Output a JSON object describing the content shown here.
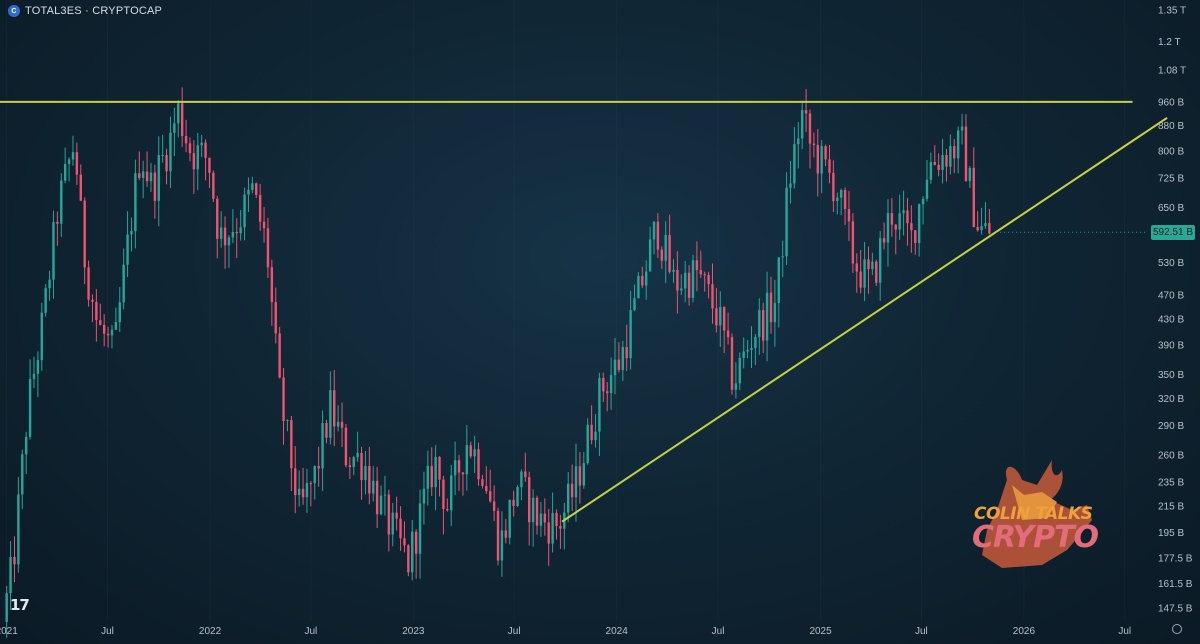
{
  "header": {
    "icon": "cryptocap-icon",
    "icon_glyph": "C",
    "title": "TOTAL3ES · CRYPTOCAP"
  },
  "price": {
    "current_label": "592.51 B",
    "color": "#28a896"
  },
  "branding": {
    "tv_logo": "tradingview-logo",
    "tv_glyph": "17"
  },
  "watermark": {
    "line1": "COLIN TALKS",
    "line2": "CRYPTO"
  },
  "colors": {
    "up": "#26a69a",
    "down": "#ef5370",
    "trendline": "#c9d13f",
    "axis_text": "#b7c0c8"
  },
  "chart_data": {
    "type": "candlestick",
    "scale": "log",
    "title": "TOTAL3ES · CRYPTOCAP",
    "ylim": [
      140,
      1400
    ],
    "xlim": [
      "2020-12-20",
      "2026-08-01"
    ],
    "y_ticks": [
      147.5,
      161.5,
      177.5,
      195,
      215,
      235,
      260,
      290,
      320,
      350,
      390,
      430,
      470,
      530,
      590,
      650,
      725,
      800,
      880,
      960,
      1080,
      1200,
      1350
    ],
    "y_tick_labels": [
      "147.5 B",
      "161.5 B",
      "177.5 B",
      "195 B",
      "215 B",
      "235 B",
      "260 B",
      "290 B",
      "320 B",
      "350 B",
      "390 B",
      "430 B",
      "470 B",
      "530 B",
      "590 B",
      "650 B",
      "725 B",
      "800 B",
      "880 B",
      "960 B",
      "1.08 T",
      "1.2 T",
      "1.35 T"
    ],
    "x_ticks": [
      "2021-01-01",
      "2021-07-01",
      "2022-01-01",
      "2022-07-01",
      "2023-01-01",
      "2023-07-01",
      "2024-01-01",
      "2024-07-01",
      "2025-01-01",
      "2025-07-01",
      "2026-01-01",
      "2026-07-01"
    ],
    "x_tick_labels": [
      "2021",
      "Jul",
      "2022",
      "Jul",
      "2023",
      "Jul",
      "2024",
      "Jul",
      "2025",
      "Jul",
      "2026",
      "Jul"
    ],
    "anchors": [
      [
        "2021-01-01",
        140
      ],
      [
        "2021-01-20",
        175
      ],
      [
        "2021-02-15",
        310
      ],
      [
        "2021-03-15",
        430
      ],
      [
        "2021-04-10",
        650
      ],
      [
        "2021-05-10",
        830
      ],
      [
        "2021-05-25",
        560
      ],
      [
        "2021-06-20",
        420
      ],
      [
        "2021-07-20",
        380
      ],
      [
        "2021-08-15",
        580
      ],
      [
        "2021-09-05",
        800
      ],
      [
        "2021-09-25",
        700
      ],
      [
        "2021-11-01",
        850
      ],
      [
        "2021-11-10",
        940
      ],
      [
        "2021-12-05",
        800
      ],
      [
        "2022-01-05",
        780
      ],
      [
        "2022-01-25",
        580
      ],
      [
        "2022-03-01",
        620
      ],
      [
        "2022-03-25",
        690
      ],
      [
        "2022-04-20",
        560
      ],
      [
        "2022-05-12",
        330
      ],
      [
        "2022-06-18",
        210
      ],
      [
        "2022-07-15",
        240
      ],
      [
        "2022-08-12",
        310
      ],
      [
        "2022-09-10",
        260
      ],
      [
        "2022-10-10",
        255
      ],
      [
        "2022-11-10",
        215
      ],
      [
        "2022-12-30",
        175
      ],
      [
        "2023-02-15",
        255
      ],
      [
        "2023-03-10",
        215
      ],
      [
        "2023-04-15",
        275
      ],
      [
        "2023-05-15",
        245
      ],
      [
        "2023-06-12",
        185
      ],
      [
        "2023-07-15",
        235
      ],
      [
        "2023-08-20",
        205
      ],
      [
        "2023-09-25",
        200
      ],
      [
        "2023-10-25",
        230
      ],
      [
        "2023-12-10",
        330
      ],
      [
        "2024-01-15",
        370
      ],
      [
        "2024-03-10",
        560
      ],
      [
        "2024-03-20",
        610
      ],
      [
        "2024-04-20",
        490
      ],
      [
        "2024-06-01",
        510
      ],
      [
        "2024-07-10",
        430
      ],
      [
        "2024-08-05",
        340
      ],
      [
        "2024-09-10",
        410
      ],
      [
        "2024-10-20",
        460
      ],
      [
        "2024-11-12",
        710
      ],
      [
        "2024-12-05",
        920
      ],
      [
        "2024-12-20",
        820
      ],
      [
        "2025-02-05",
        700
      ],
      [
        "2025-03-10",
        530
      ],
      [
        "2025-04-08",
        490
      ],
      [
        "2025-05-15",
        640
      ],
      [
        "2025-06-20",
        580
      ],
      [
        "2025-07-20",
        760
      ],
      [
        "2025-08-25",
        800
      ],
      [
        "2025-09-20",
        820
      ],
      [
        "2025-10-10",
        650
      ],
      [
        "2025-10-20",
        600
      ],
      [
        "2025-11-05",
        592.51
      ]
    ],
    "resistance_line": {
      "x": [
        "2020-12-15",
        "2026-07-15"
      ],
      "y": [
        960,
        960
      ]
    },
    "support_line": {
      "x": [
        "2023-09-25",
        "2026-09-15"
      ],
      "y": [
        203,
        905
      ]
    },
    "last_price": 592.51
  }
}
